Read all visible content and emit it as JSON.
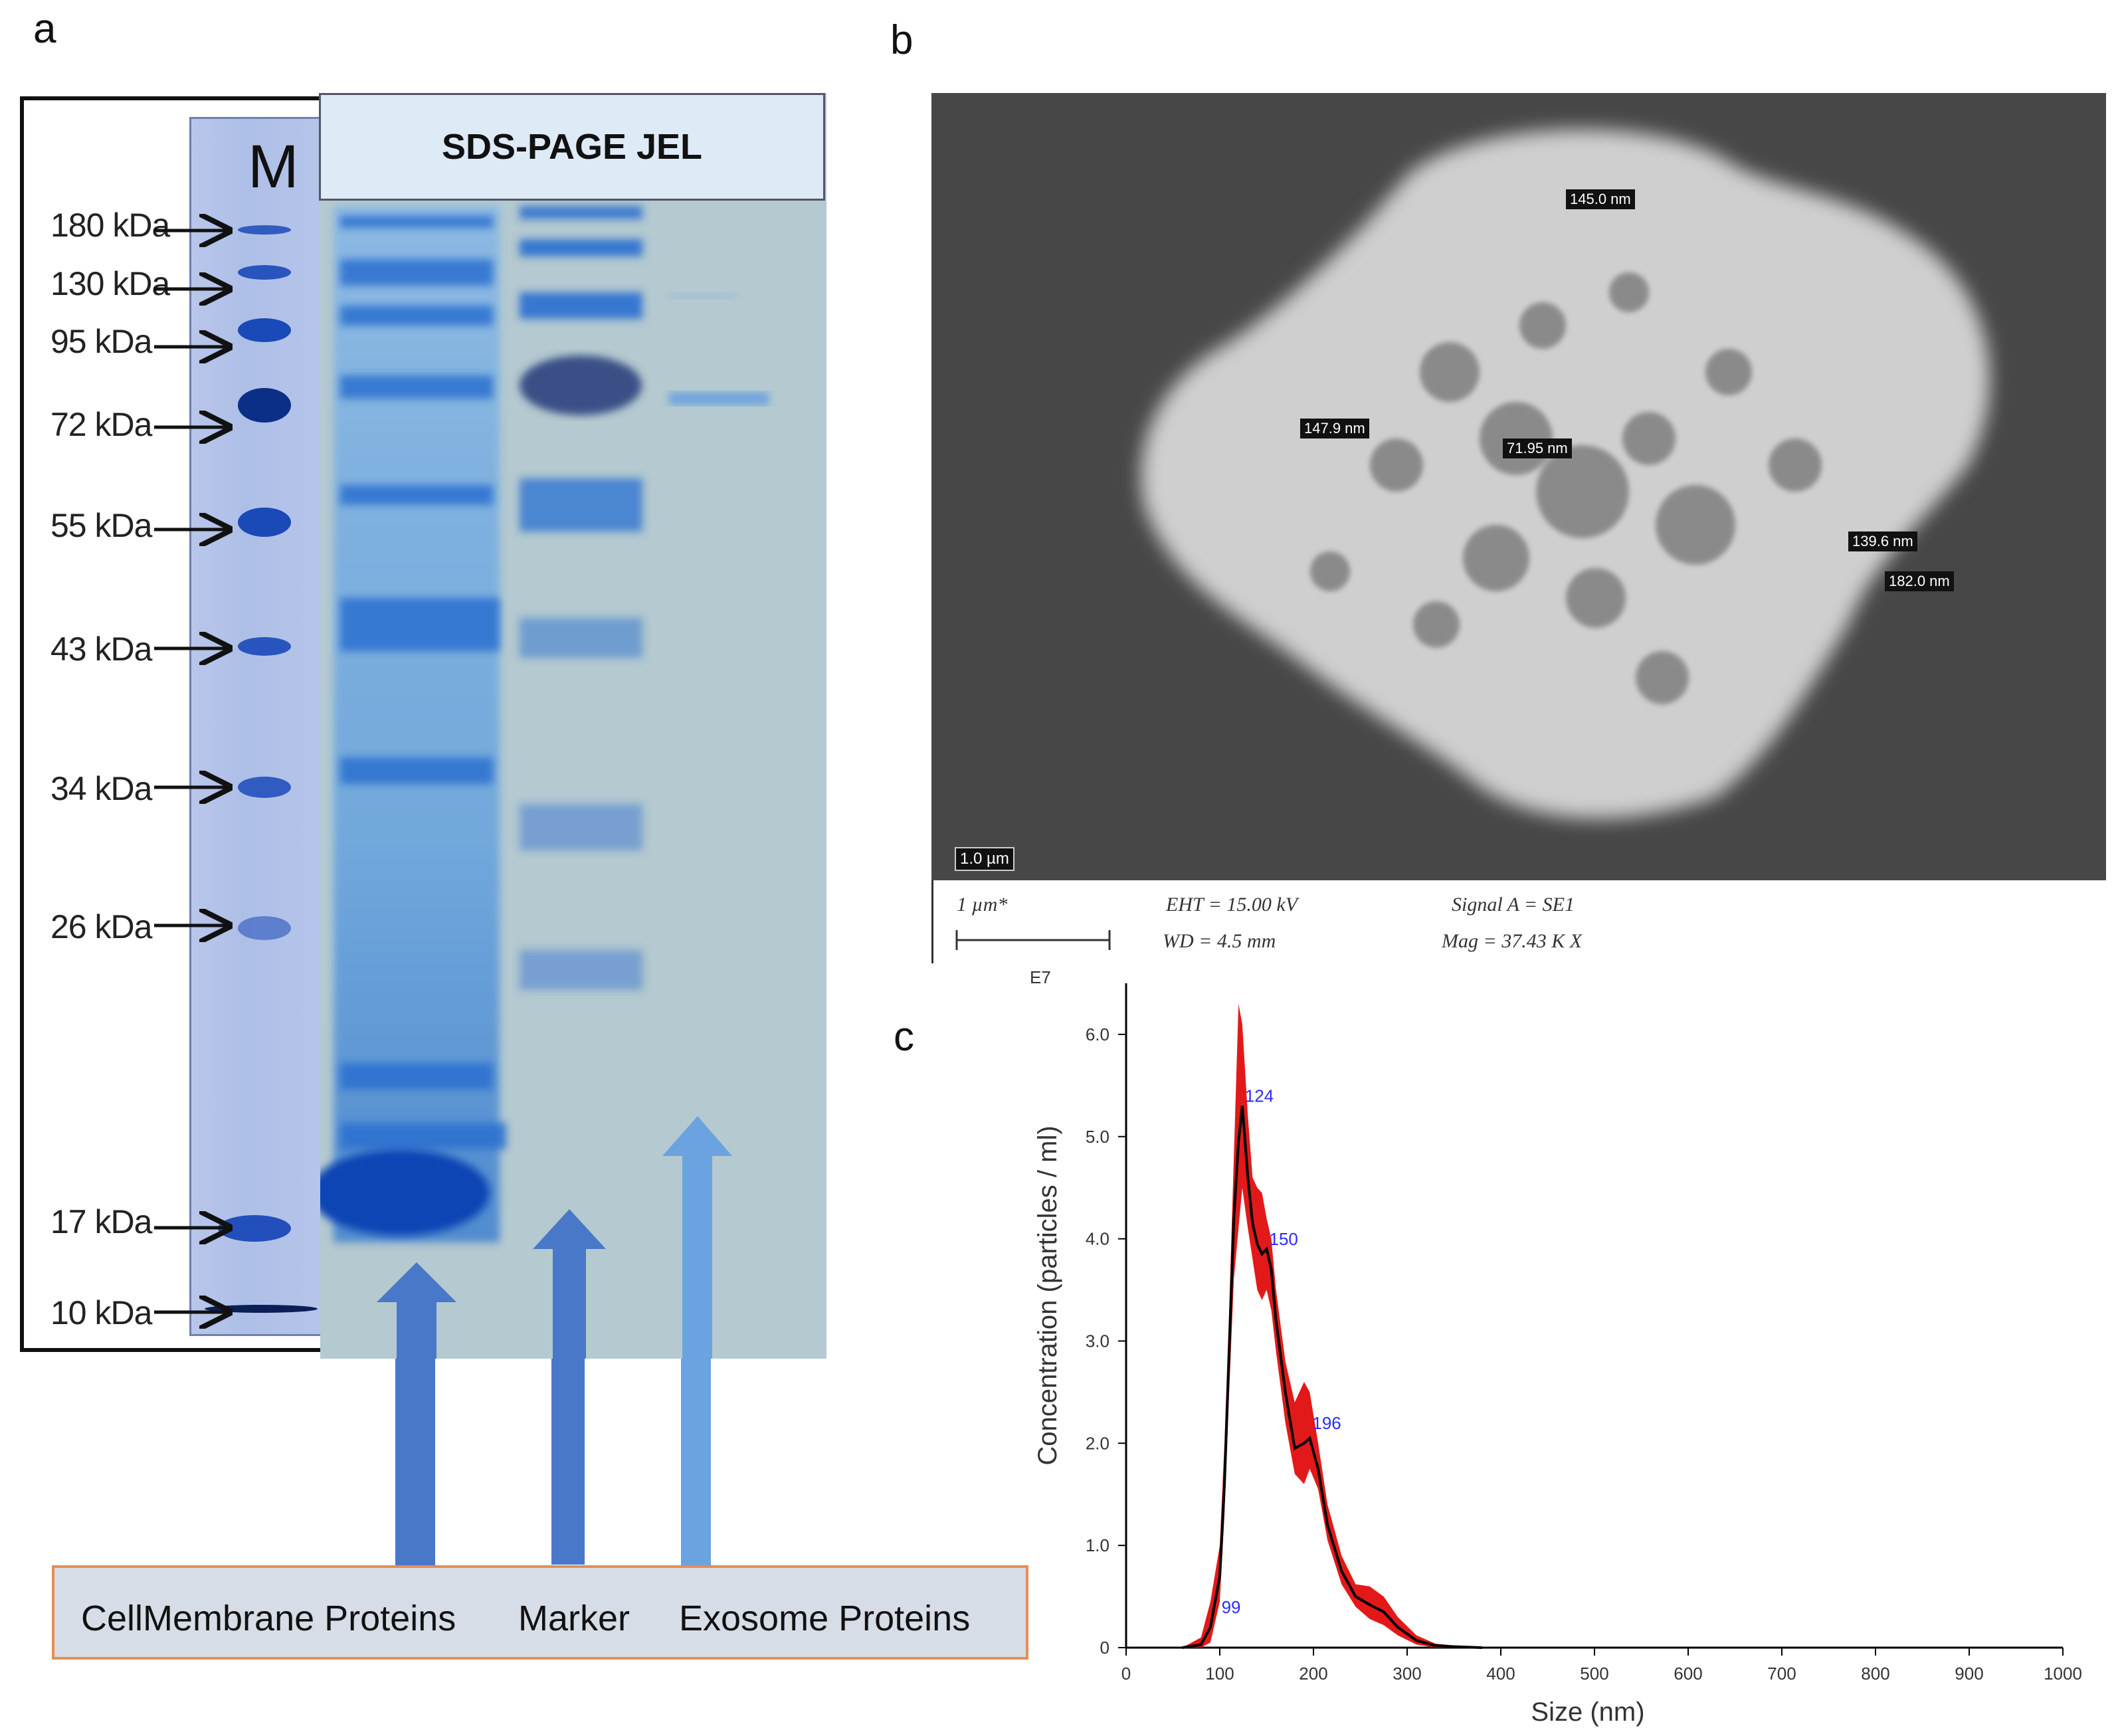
{
  "panels": {
    "a": "a",
    "b": "b",
    "c": "c"
  },
  "panel_a": {
    "marker_lane_label": "M",
    "gel_title": "SDS-PAGE  JEL",
    "kda_labels": [
      "180 kDa",
      "130 kDa",
      "95 kDa",
      "72 kDa",
      "55 kDa",
      "43 kDa",
      "34 kDa",
      "26 kDa",
      "17 kDa",
      "10 kDa"
    ],
    "lane_labels": {
      "cell_membrane": "CellMembrane Proteins",
      "marker": "Marker",
      "exosome": "Exosome Proteins"
    },
    "colors": {
      "band": "#1a49b8",
      "gel": "#b3c8cf",
      "label_box_border": "#e58e54",
      "lane_arrow": "#4a78c8"
    }
  },
  "panel_b": {
    "measurements": [
      "145.0 nm",
      "147.9 nm",
      "71.95 nm",
      "139.6 nm",
      "182.0 nm"
    ],
    "scale_bar_label": "1.0 µm",
    "meta": {
      "scale": "1 µm*",
      "eht": "EHT = 15.00 kV",
      "wd": "WD =  4.5 mm",
      "signal": "Signal A = SE1",
      "mag": "Mag =   37.43 K X"
    }
  },
  "chart_data": {
    "type": "line",
    "title": "",
    "xlabel": "Size (nm)",
    "ylabel": "Concentration (particles / ml)",
    "y_multiplier_label": "E7",
    "xlim": [
      0,
      1000
    ],
    "ylim": [
      0,
      6.5
    ],
    "x_ticks": [
      "0",
      "100",
      "200",
      "300",
      "400",
      "500",
      "600",
      "700",
      "800",
      "900",
      "1000"
    ],
    "y_ticks": [
      "0",
      "1.0",
      "2.0",
      "3.0",
      "4.0",
      "5.0",
      "6.0"
    ],
    "peak_labels": [
      {
        "x": 99,
        "y": 0.3,
        "text": "99"
      },
      {
        "x": 124,
        "y": 5.3,
        "text": "124"
      },
      {
        "x": 150,
        "y": 3.9,
        "text": "150"
      },
      {
        "x": 196,
        "y": 2.1,
        "text": "196"
      }
    ],
    "series": [
      {
        "color": "#000000",
        "x": [
          60,
          80,
          90,
          100,
          105,
          110,
          115,
          120,
          124,
          130,
          135,
          140,
          145,
          150,
          155,
          160,
          170,
          180,
          190,
          196,
          205,
          215,
          230,
          245,
          260,
          275,
          290,
          310,
          330,
          350,
          380
        ],
        "y": [
          0,
          0.03,
          0.2,
          0.7,
          1.6,
          2.9,
          4.2,
          4.95,
          5.3,
          4.6,
          4.15,
          3.95,
          3.85,
          3.9,
          3.7,
          3.2,
          2.5,
          1.95,
          2.0,
          2.05,
          1.75,
          1.2,
          0.75,
          0.5,
          0.42,
          0.35,
          0.2,
          0.07,
          0.02,
          0.01,
          0
        ]
      }
    ],
    "error_band": {
      "color": "#e00000",
      "x": [
        60,
        80,
        90,
        100,
        105,
        110,
        115,
        120,
        124,
        130,
        135,
        140,
        145,
        150,
        155,
        160,
        170,
        180,
        190,
        196,
        205,
        215,
        230,
        245,
        260,
        275,
        290,
        310,
        330,
        350,
        380
      ],
      "upper": [
        0,
        0.1,
        0.45,
        1.0,
        2.0,
        3.3,
        4.8,
        6.3,
        6.1,
        5.2,
        4.6,
        4.5,
        4.45,
        4.2,
        4.0,
        3.5,
        2.8,
        2.4,
        2.6,
        2.5,
        2.0,
        1.4,
        0.9,
        0.62,
        0.6,
        0.5,
        0.3,
        0.12,
        0.04,
        0.02,
        0
      ],
      "lower": [
        0,
        0,
        0.05,
        0.45,
        1.3,
        2.5,
        3.6,
        4.1,
        4.5,
        4.1,
        3.8,
        3.5,
        3.4,
        3.5,
        3.3,
        2.9,
        2.2,
        1.7,
        1.6,
        1.75,
        1.55,
        1.05,
        0.62,
        0.4,
        0.28,
        0.22,
        0.12,
        0.03,
        0,
        0,
        0
      ]
    }
  }
}
